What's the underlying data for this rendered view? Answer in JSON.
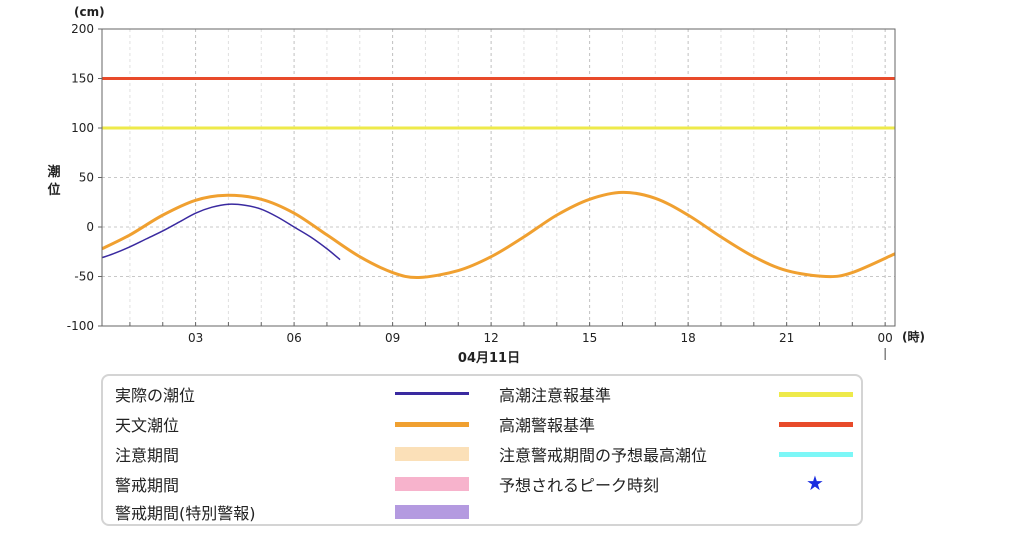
{
  "chart_data": {
    "type": "line",
    "y_unit": "(cm)",
    "ylabel": "潮位",
    "x_unit": "(時)",
    "xlabel": "04月11日",
    "ylim": [
      -100,
      200
    ],
    "y_ticks": [
      "200",
      "150",
      "100",
      "50",
      "0",
      "-50",
      "-100"
    ],
    "y_tick_values": [
      200,
      150,
      100,
      50,
      0,
      -50,
      -100
    ],
    "x_ticks": [
      "03",
      "06",
      "09",
      "12",
      "15",
      "18",
      "21",
      "00"
    ],
    "x_tick_hours": [
      3,
      6,
      9,
      12,
      15,
      18,
      21,
      24
    ],
    "xlim_hours": [
      0.15,
      24.3
    ],
    "grid": true,
    "thresholds": [
      {
        "name": "高潮警報基準",
        "value": 150,
        "color": "#e84a2a"
      },
      {
        "name": "高潮注意報基準",
        "value": 100,
        "color": "#eeea4a"
      }
    ],
    "series": [
      {
        "name": "天文潮位",
        "color": "#f0a030",
        "x_hours": [
          0.15,
          1,
          2,
          3,
          3.9,
          5,
          6,
          7,
          8,
          9,
          9.8,
          11,
          12,
          13,
          14,
          15,
          16,
          17,
          18,
          19,
          20,
          21,
          22.2,
          23,
          24.3
        ],
        "values": [
          -22,
          -8,
          12,
          27,
          32,
          28,
          14,
          -8,
          -30,
          -46,
          -51,
          -44,
          -30,
          -10,
          12,
          28,
          35,
          29,
          12,
          -10,
          -30,
          -44,
          -50,
          -46,
          -27
        ]
      },
      {
        "name": "実際の潮位",
        "color": "#3a2aa0",
        "x_hours": [
          0.15,
          0.5,
          1,
          1.5,
          2,
          2.5,
          3,
          3.5,
          4,
          4.5,
          5,
          5.5,
          6,
          6.5,
          7,
          7.4
        ],
        "values": [
          -31,
          -27,
          -20,
          -12,
          -4,
          5,
          14,
          20,
          23,
          22,
          18,
          10,
          0,
          -10,
          -22,
          -33
        ]
      }
    ]
  },
  "legend": {
    "items": [
      {
        "label": "実際の潮位",
        "color": "#3a2aa0",
        "kind": "line"
      },
      {
        "label": "天文潮位",
        "color": "#f0a030",
        "kind": "line"
      },
      {
        "label": "注意期間",
        "color": "#fbe0b8",
        "kind": "band"
      },
      {
        "label": "警戒期間",
        "color": "#f7b3cc",
        "kind": "band"
      },
      {
        "label": "警戒期間(特別警報)",
        "color": "#b49ae0",
        "kind": "band"
      },
      {
        "label": "高潮注意報基準",
        "color": "#eeea4a",
        "kind": "line"
      },
      {
        "label": "高潮警報基準",
        "color": "#e84a2a",
        "kind": "line"
      },
      {
        "label": "注意警戒期間の予想最高潮位",
        "color": "#7cf7f7",
        "kind": "line"
      },
      {
        "label": "予想されるピーク時刻",
        "color": "#1a2de0",
        "kind": "star",
        "icon": "star-icon"
      }
    ]
  }
}
